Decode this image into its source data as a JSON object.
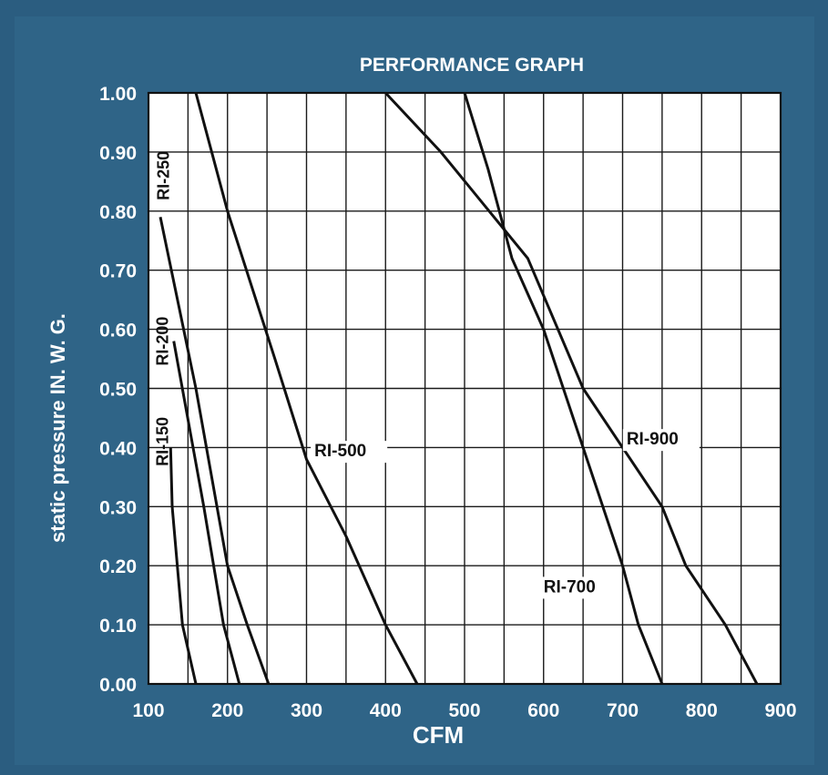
{
  "chart_data": {
    "type": "line",
    "title": "PERFORMANCE GRAPH",
    "xlabel": "CFM",
    "ylabel": "static pressure  IN. W. G.",
    "xlim": [
      100,
      900
    ],
    "ylim": [
      0,
      1.0
    ],
    "xticks": [
      "100",
      "200",
      "300",
      "400",
      "500",
      "600",
      "700",
      "800",
      "900"
    ],
    "yticks": [
      "0.00",
      "0.10",
      "0.20",
      "0.30",
      "0.40",
      "0.50",
      "0.60",
      "0.70",
      "0.80",
      "0.90",
      "1.00"
    ],
    "grid": true,
    "series": [
      {
        "name": "RI-150",
        "x": [
          128,
          130,
          143,
          160
        ],
        "y": [
          0.4,
          0.3,
          0.1,
          0.0
        ]
      },
      {
        "name": "RI-200",
        "x": [
          132,
          170,
          195,
          215
        ],
        "y": [
          0.58,
          0.3,
          0.1,
          0.0
        ]
      },
      {
        "name": "RI-250",
        "x": [
          115,
          160,
          200,
          225,
          252
        ],
        "y": [
          0.79,
          0.5,
          0.2,
          0.1,
          0.0
        ]
      },
      {
        "name": "RI-500",
        "x": [
          160,
          200,
          260,
          300,
          350,
          400,
          440
        ],
        "y": [
          1.0,
          0.8,
          0.55,
          0.38,
          0.25,
          0.1,
          0.0
        ]
      },
      {
        "name": "RI-700",
        "x": [
          500,
          530,
          560,
          600,
          650,
          700,
          720,
          750
        ],
        "y": [
          1.0,
          0.87,
          0.72,
          0.6,
          0.4,
          0.2,
          0.1,
          0.0
        ]
      },
      {
        "name": "RI-900",
        "x": [
          400,
          470,
          580,
          650,
          700,
          750,
          780,
          830,
          870
        ],
        "y": [
          1.0,
          0.9,
          0.72,
          0.5,
          0.4,
          0.3,
          0.2,
          0.1,
          0.0
        ]
      }
    ]
  }
}
